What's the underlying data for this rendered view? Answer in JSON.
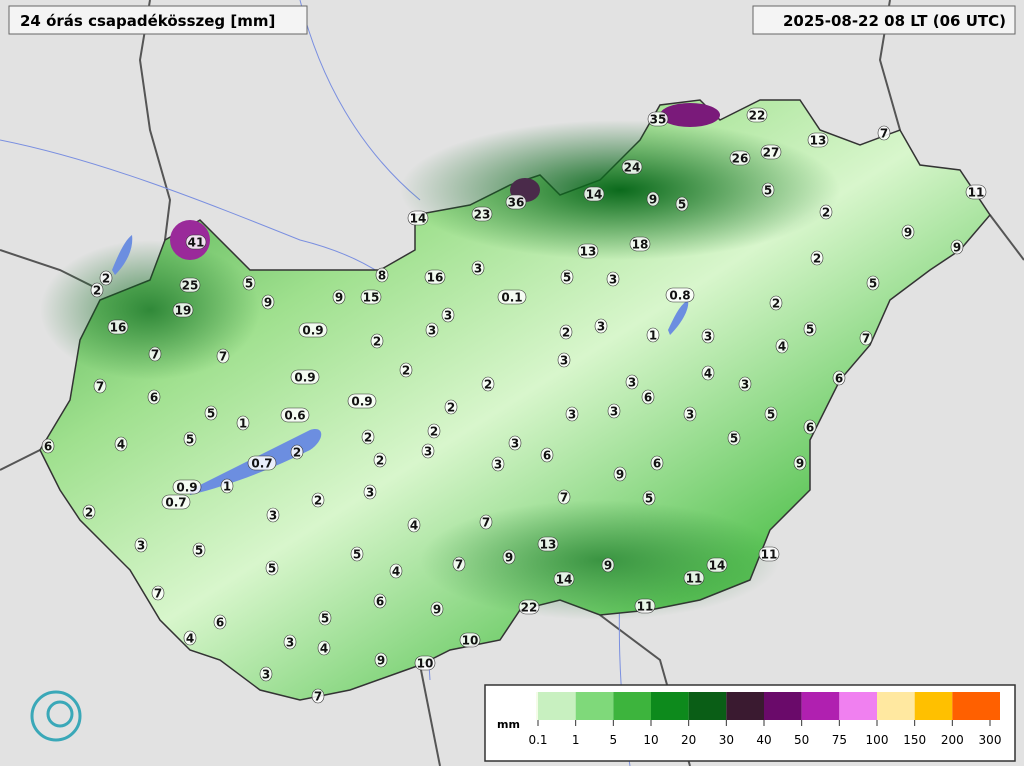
{
  "header": {
    "title": "24 órás csapadékösszeg [mm]",
    "time": "2025-08-22 08 LT (06 UTC)"
  },
  "stations": [
    35,
    22,
    13,
    7,
    26,
    27,
    24,
    5,
    11,
    36,
    14,
    9,
    5,
    2,
    14,
    23,
    9,
    9,
    41,
    13,
    18,
    2,
    2,
    2,
    25,
    5,
    8,
    16,
    3,
    5,
    3,
    5,
    19,
    9,
    9,
    15,
    0.1,
    0.8,
    2,
    16,
    0.9,
    3,
    3,
    2,
    3,
    1,
    3,
    5,
    7,
    7,
    7,
    2,
    3,
    4,
    7,
    6,
    0.9,
    2,
    2,
    3,
    4,
    3,
    6,
    5,
    1,
    0.6,
    0.9,
    2,
    3,
    3,
    6,
    3,
    5,
    6,
    4,
    5,
    2,
    2,
    2,
    3,
    3,
    6,
    5,
    0.7,
    2,
    3,
    6,
    9,
    6,
    9,
    0.9,
    1,
    0.7,
    3,
    2,
    7,
    5,
    2,
    3,
    4,
    7,
    3,
    5,
    5,
    13,
    9,
    7,
    5,
    4,
    9,
    11,
    14,
    11,
    14,
    7,
    6,
    22,
    11,
    5,
    9,
    6,
    4,
    3,
    4,
    10,
    9,
    10,
    3,
    7
  ],
  "legend": {
    "unit": "mm",
    "ticks": [
      0.1,
      1,
      5,
      10,
      20,
      30,
      40,
      50,
      75,
      100,
      150,
      200,
      300
    ],
    "colors": [
      "#f4fce8",
      "#c8f0c0",
      "#7fd97a",
      "#3db43d",
      "#0d8a1c",
      "#0a5e16",
      "#3a1a30",
      "#6a0a6a",
      "#b020b0",
      "#f080f0",
      "#ffe8a0",
      "#ffc000",
      "#ff6000"
    ]
  }
}
